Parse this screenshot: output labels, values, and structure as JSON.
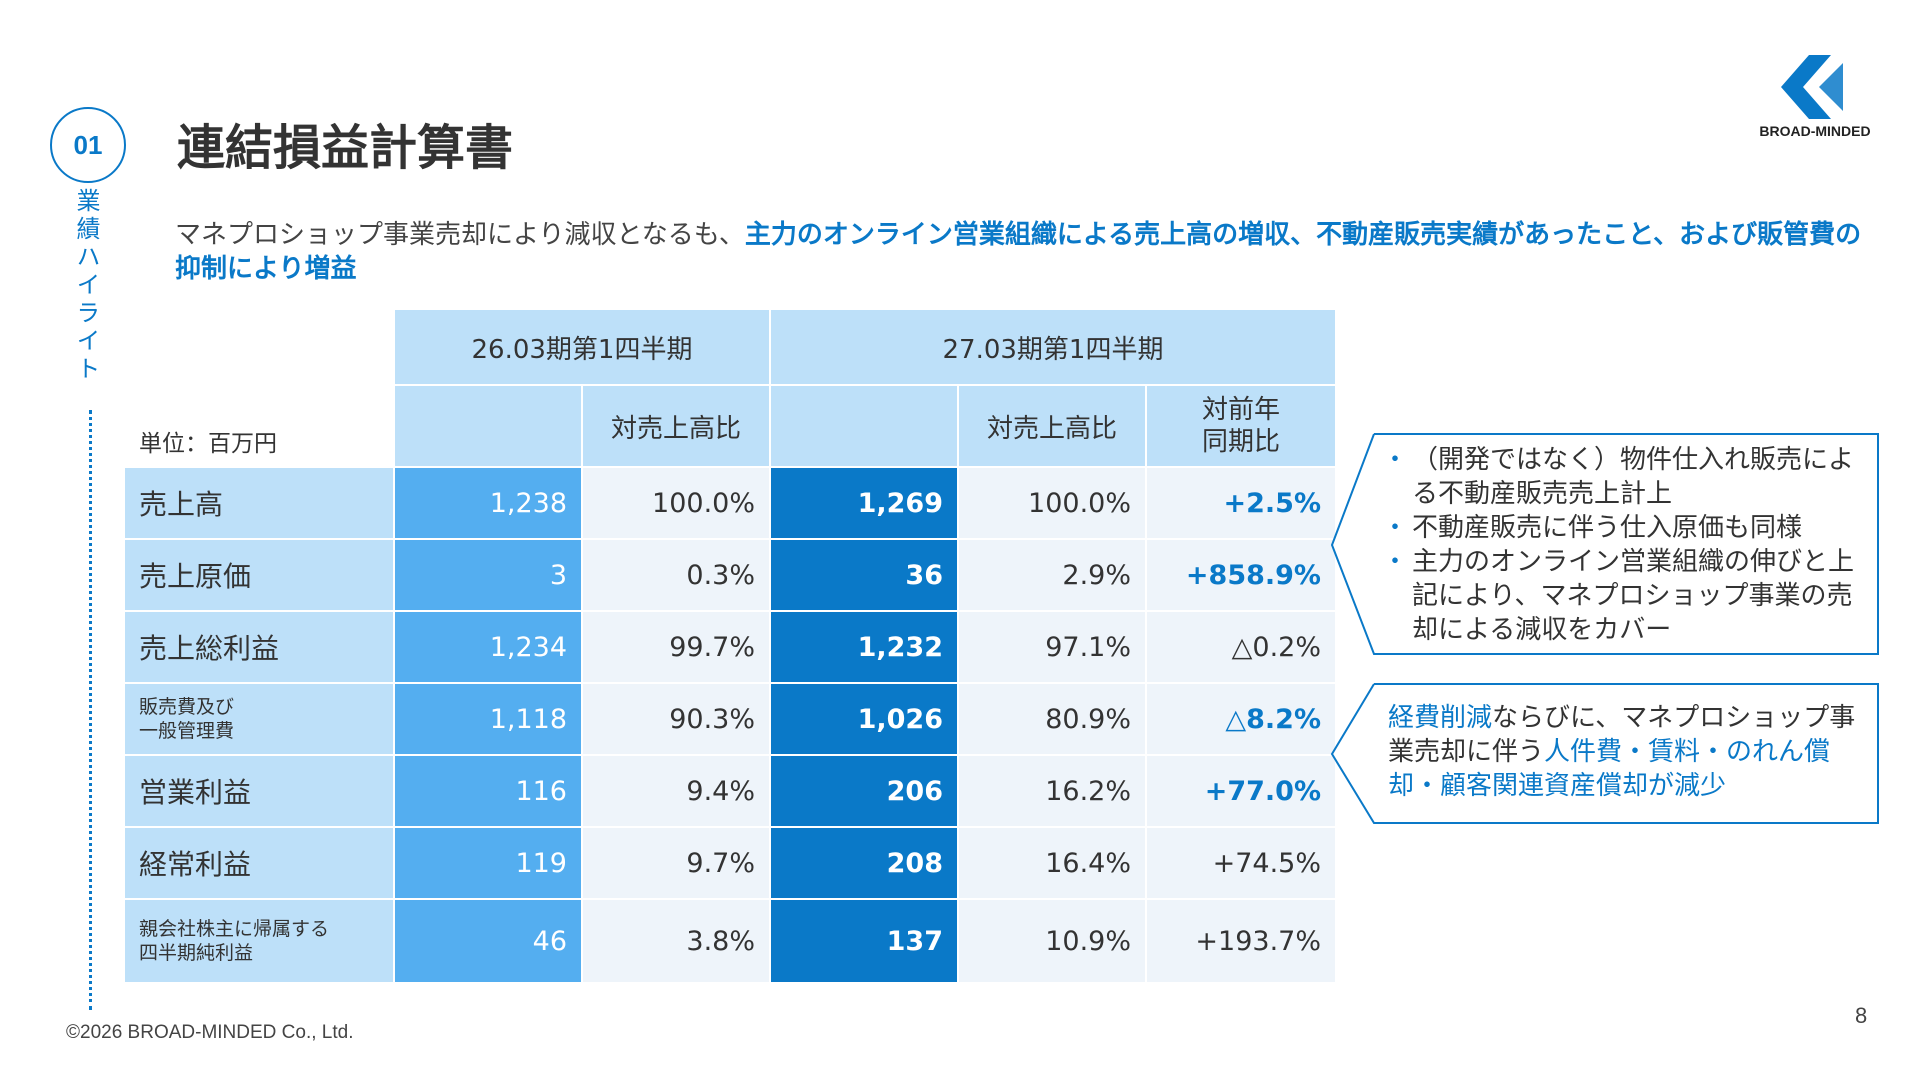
{
  "section": {
    "number": "01",
    "label": "業績ハイライト"
  },
  "title": "連結損益計算書",
  "logo": {
    "text": "BROAD-MINDED"
  },
  "lead": {
    "normal": "マネプロショップ事業売却により減収となるも、",
    "highlight": "主力のオンライン営業組織による売上高の増収、不動産販売実績があったこと、および販管費の抑制により増益"
  },
  "table": {
    "unit": "単位：百万円",
    "prev_period": "26.03期第1四半期",
    "cur_period": "27.03期第1四半期",
    "ratio_header": "対売上高比",
    "yoy_header": "対前年\n同期比",
    "rows": [
      {
        "label": "売上高",
        "prev": "1,238",
        "prev_ratio": "100.0%",
        "cur": "1,269",
        "cur_ratio": "100.0%",
        "yoy": "+2.5%"
      },
      {
        "label": "売上原価",
        "prev": "3",
        "prev_ratio": "0.3%",
        "cur": "36",
        "cur_ratio": "2.9%",
        "yoy": "+858.9%"
      },
      {
        "label": "売上総利益",
        "prev": "1,234",
        "prev_ratio": "99.7%",
        "cur": "1,232",
        "cur_ratio": "97.1%",
        "yoy": "△0.2%"
      },
      {
        "label": "販売費及び\n一般管理費",
        "prev": "1,118",
        "prev_ratio": "90.3%",
        "cur": "1,026",
        "cur_ratio": "80.9%",
        "yoy": "△8.2%"
      },
      {
        "label": "営業利益",
        "prev": "116",
        "prev_ratio": "9.4%",
        "cur": "206",
        "cur_ratio": "16.2%",
        "yoy": "+77.0%"
      },
      {
        "label": "経常利益",
        "prev": "119",
        "prev_ratio": "9.7%",
        "cur": "208",
        "cur_ratio": "16.4%",
        "yoy": "+74.5%"
      },
      {
        "label": "親会社株主に帰属する\n四半期純利益",
        "prev": "46",
        "prev_ratio": "3.8%",
        "cur": "137",
        "cur_ratio": "10.9%",
        "yoy": "+193.7%"
      }
    ]
  },
  "callout1": {
    "bullets": [
      "（開発ではなく）物件仕入れ販売による不動産販売売上計上",
      "不動産販売に伴う仕入原価も同様",
      "主力のオンライン営業組織の伸びと上記により、マネプロショップ事業の売却による減収をカバー"
    ]
  },
  "callout2": {
    "p1": "経費削減",
    "p2": "ならびに、マネプロショップ事業売却に伴う",
    "p3": "人件費・賃料・のれん償却・顧客関連資産償却が減少"
  },
  "footer": "©2026 BROAD-MINDED Co., Ltd.",
  "page_number": "8",
  "colors": {
    "accent": "#0a79c8",
    "light": "#bde0f9",
    "mid": "#54aef0",
    "pale": "#eef4fa"
  }
}
